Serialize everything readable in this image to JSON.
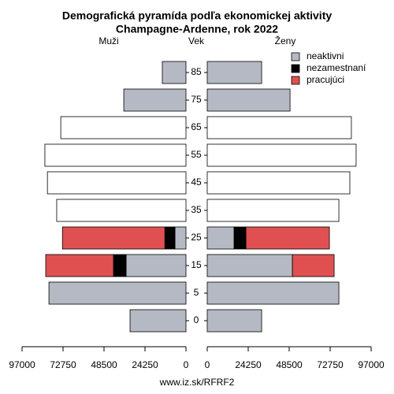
{
  "chart_data": {
    "type": "pyramid",
    "title": "Demografická pyramída podľa ekonomickej aktivity",
    "subtitle": "Champagne-Ardenne, rok 2022",
    "left_label": "Muži",
    "center_label": "Vek",
    "right_label": "Ženy",
    "footer": "www.iz.sk/RFRF2",
    "categories": [
      0,
      5,
      15,
      25,
      35,
      45,
      55,
      65,
      75,
      85
    ],
    "xlim": [
      0,
      97000
    ],
    "xticks": [
      0,
      24250,
      48500,
      72750,
      97000
    ],
    "series": [
      {
        "name": "neaktivni",
        "color": "#b4b9c3",
        "men": [
          33100,
          81100,
          35400,
          6500,
          null,
          null,
          null,
          null,
          36800,
          14000
        ],
        "women": [
          32200,
          77900,
          50400,
          15900,
          null,
          null,
          null,
          null,
          49000,
          32200
        ]
      },
      {
        "name": "nezamestnaní",
        "color": "#000000",
        "men": [
          null,
          null,
          7500,
          6000,
          null,
          null,
          null,
          null,
          null,
          null
        ],
        "women": [
          null,
          null,
          null,
          7000,
          null,
          null,
          null,
          null,
          null,
          null
        ]
      },
      {
        "name": "pracujúci",
        "color": "#e05050",
        "men": [
          null,
          null,
          40100,
          60600,
          null,
          null,
          null,
          null,
          null,
          null
        ],
        "women": [
          null,
          null,
          24700,
          49400,
          null,
          null,
          null,
          null,
          null,
          null
        ]
      },
      {
        "color": "#ffffff",
        "men": [
          null,
          null,
          null,
          null,
          76500,
          82000,
          83500,
          74100,
          null,
          null
        ],
        "women": [
          null,
          null,
          null,
          null,
          77900,
          84400,
          88100,
          85300,
          null,
          null
        ]
      }
    ]
  }
}
